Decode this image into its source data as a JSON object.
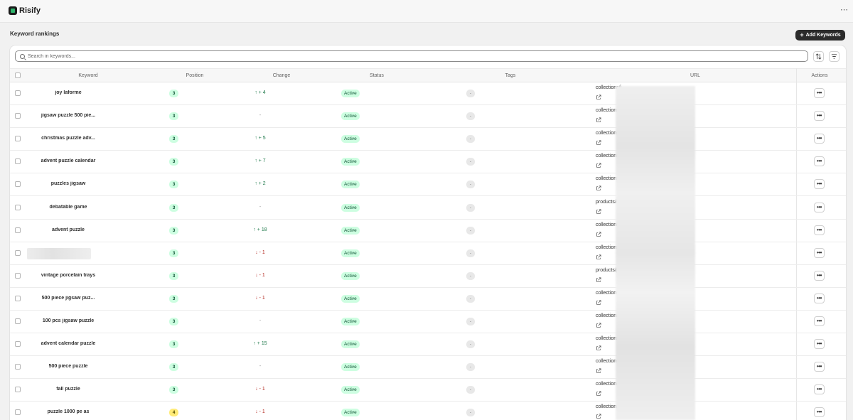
{
  "app": {
    "name": "Risify",
    "menu_icon": "more-horizontal-icon"
  },
  "page": {
    "title": "Keyword rankings",
    "add_button_label": "Add Keywords",
    "add_button_icon": "plus-icon"
  },
  "search": {
    "placeholder": "Search in keywords...",
    "value": ""
  },
  "toolbar": {
    "sort_icon": "sort-icon",
    "filter_icon": "filter-icon"
  },
  "table": {
    "columns": [
      "Keyword",
      "Position",
      "Change",
      "Status",
      "Tags",
      "URL",
      "Actions"
    ],
    "rows": [
      {
        "keyword": "joy laforme",
        "position": "3",
        "position_color": "green",
        "change": "↑ + 4",
        "direction": "up",
        "status": "Active",
        "tags": "-",
        "url": "collections/j"
      },
      {
        "keyword": "jigsaw puzzle 500 pie...",
        "position": "3",
        "position_color": "green",
        "change": "-",
        "direction": "none",
        "status": "Active",
        "tags": "-",
        "url": "collections/"
      },
      {
        "keyword": "christmas puzzle adv...",
        "position": "3",
        "position_color": "green",
        "change": "↑ + 5",
        "direction": "up",
        "status": "Active",
        "tags": "-",
        "url": "collections/j"
      },
      {
        "keyword": "advent puzzle calendar",
        "position": "3",
        "position_color": "green",
        "change": "↑ + 7",
        "direction": "up",
        "status": "Active",
        "tags": "-",
        "url": "collections/j"
      },
      {
        "keyword": "puzzles jigsaw",
        "position": "3",
        "position_color": "green",
        "change": "↑ + 2",
        "direction": "up",
        "status": "Active",
        "tags": "-",
        "url": "collections/j"
      },
      {
        "keyword": "debatable game",
        "position": "3",
        "position_color": "green",
        "change": "-",
        "direction": "none",
        "status": "Active",
        "tags": "-",
        "url": "products/de"
      },
      {
        "keyword": "advent puzzle",
        "position": "3",
        "position_color": "green",
        "change": "↑ + 18",
        "direction": "up",
        "status": "Active",
        "tags": "-",
        "url": "collections/j"
      },
      {
        "keyword": "",
        "position": "3",
        "position_color": "green",
        "change": "↓ - 1",
        "direction": "down",
        "status": "Active",
        "tags": "-",
        "url": "collections/"
      },
      {
        "keyword": "vintage porcelain trays",
        "position": "3",
        "position_color": "green",
        "change": "↓ - 1",
        "direction": "down",
        "status": "Active",
        "tags": "-",
        "url": "products/ph"
      },
      {
        "keyword": "500 piece jigsaw puz...",
        "position": "3",
        "position_color": "green",
        "change": "↓ - 1",
        "direction": "down",
        "status": "Active",
        "tags": "-",
        "url": "collections/"
      },
      {
        "keyword": "100 pcs jigsaw puzzle",
        "position": "3",
        "position_color": "green",
        "change": "-",
        "direction": "none",
        "status": "Active",
        "tags": "-",
        "url": "collections/"
      },
      {
        "keyword": "advent calendar puzzle",
        "position": "3",
        "position_color": "green",
        "change": "↑ + 15",
        "direction": "up",
        "status": "Active",
        "tags": "-",
        "url": "collections/j"
      },
      {
        "keyword": "500 piece puzzle",
        "position": "3",
        "position_color": "green",
        "change": "-",
        "direction": "none",
        "status": "Active",
        "tags": "-",
        "url": "collections/j"
      },
      {
        "keyword": "fall puzzle",
        "position": "3",
        "position_color": "green",
        "change": "↓ - 1",
        "direction": "down",
        "status": "Active",
        "tags": "-",
        "url": "collections/a"
      },
      {
        "keyword": "puzzle 1000 pe as",
        "position": "4",
        "position_color": "yellow",
        "change": "↓ - 1",
        "direction": "down",
        "status": "Active",
        "tags": "-",
        "url": "collections/"
      }
    ]
  }
}
